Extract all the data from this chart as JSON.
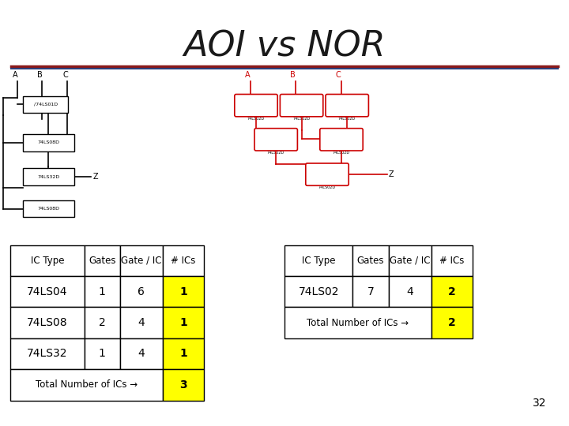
{
  "title": "AOI vs NOR",
  "title_fontsize": 32,
  "title_color": "#1a1a1a",
  "title_line_color_top": "#8b1a1a",
  "title_line_color_bottom": "#2c3e7a",
  "background_color": "#ffffff",
  "left_table": {
    "headers": [
      "IC Type",
      "Gates",
      "Gate / IC",
      "# ICs"
    ],
    "rows": [
      [
        "74LS04",
        "1",
        "6",
        "1"
      ],
      [
        "74LS08",
        "2",
        "4",
        "1"
      ],
      [
        "74LS32",
        "1",
        "4",
        "1"
      ],
      [
        "Total Number of ICs →",
        "",
        "",
        "3"
      ]
    ],
    "highlight_col": 3,
    "highlight_color": "#ffff00"
  },
  "right_table": {
    "headers": [
      "IC Type",
      "Gates",
      "Gate / IC",
      "# ICs"
    ],
    "rows": [
      [
        "74LS02",
        "7",
        "4",
        "2"
      ],
      [
        "Total Number of ICs →",
        "",
        "",
        "2"
      ]
    ],
    "highlight_col": 3,
    "highlight_color": "#ffff00"
  },
  "page_number": "32"
}
